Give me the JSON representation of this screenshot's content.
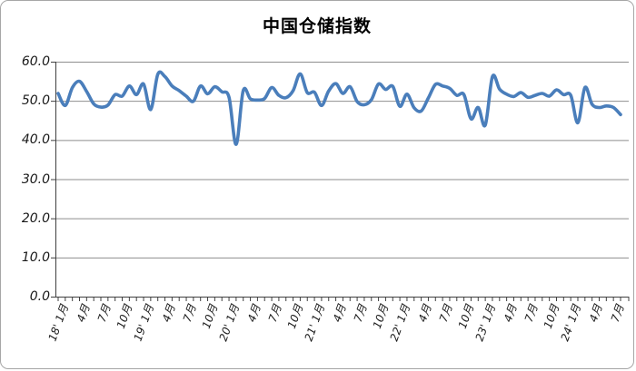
{
  "title": "中国仓储指数",
  "colors": {
    "line": "#4a7ebb",
    "grid": "#8e8e8e",
    "axis": "#3f3f3f",
    "border": "#a6a6a6",
    "background": "#ffffff",
    "text": "#000000"
  },
  "y_axis": {
    "tick_labels": [
      "60.0",
      "50.0",
      "40.0",
      "30.0",
      "20.0",
      "10.0",
      "0.0"
    ],
    "min": 0,
    "max": 60,
    "step": 10
  },
  "x_axis": {
    "tick_labels": [
      "18' 1月",
      "4月",
      "7月",
      "10月",
      "19' 1月",
      "4月",
      "7月",
      "10月",
      "20' 1月",
      "4月",
      "7月",
      "10月",
      "21' 1月",
      "4月",
      "7月",
      "10月",
      "22' 1月",
      "4月",
      "7月",
      "10月",
      "23' 1月",
      "4月",
      "7月",
      "10月",
      "24' 1月",
      "4月",
      "7月"
    ],
    "label_every_n_months": 3
  },
  "chart_data": {
    "type": "line",
    "title": "中国仓储指数",
    "xlabel": "",
    "ylabel": "",
    "ylim": [
      0,
      60
    ],
    "grid": true,
    "legend": false,
    "smooth": true,
    "frequency": "monthly",
    "x": [
      "2018-01",
      "2018-02",
      "2018-03",
      "2018-04",
      "2018-05",
      "2018-06",
      "2018-07",
      "2018-08",
      "2018-09",
      "2018-10",
      "2018-11",
      "2018-12",
      "2019-01",
      "2019-02",
      "2019-03",
      "2019-04",
      "2019-05",
      "2019-06",
      "2019-07",
      "2019-08",
      "2019-09",
      "2019-10",
      "2019-11",
      "2019-12",
      "2020-01",
      "2020-02",
      "2020-03",
      "2020-04",
      "2020-05",
      "2020-06",
      "2020-07",
      "2020-08",
      "2020-09",
      "2020-10",
      "2020-11",
      "2020-12",
      "2021-01",
      "2021-02",
      "2021-03",
      "2021-04",
      "2021-05",
      "2021-06",
      "2021-07",
      "2021-08",
      "2021-09",
      "2021-10",
      "2021-11",
      "2021-12",
      "2022-01",
      "2022-02",
      "2022-03",
      "2022-04",
      "2022-05",
      "2022-06",
      "2022-07",
      "2022-08",
      "2022-09",
      "2022-10",
      "2022-11",
      "2022-12",
      "2023-01",
      "2023-02",
      "2023-03",
      "2023-04",
      "2023-05",
      "2023-06",
      "2023-07",
      "2023-08",
      "2023-09",
      "2023-10",
      "2023-11",
      "2023-12",
      "2024-01",
      "2024-02",
      "2024-03",
      "2024-04",
      "2024-05",
      "2024-06",
      "2024-07",
      "2024-08"
    ],
    "series": [
      {
        "name": "中国仓储指数",
        "values": [
          51.9,
          48.8,
          53.4,
          55.0,
          52.4,
          49.2,
          48.4,
          48.9,
          51.6,
          51.2,
          53.8,
          51.6,
          54.3,
          47.8,
          56.8,
          56.2,
          53.8,
          52.6,
          51.2,
          49.9,
          53.8,
          51.8,
          53.6,
          52.3,
          50.9,
          38.9,
          52.6,
          50.5,
          50.2,
          50.6,
          53.4,
          51.4,
          50.8,
          52.6,
          56.9,
          52.1,
          52.2,
          48.8,
          52.5,
          54.4,
          51.9,
          53.6,
          49.8,
          49.0,
          50.3,
          54.3,
          52.9,
          53.7,
          48.6,
          51.7,
          48.2,
          47.4,
          50.7,
          54.2,
          53.8,
          53.2,
          51.4,
          51.6,
          45.4,
          48.3,
          43.8,
          56.2,
          53.0,
          51.7,
          51.1,
          52.1,
          50.9,
          51.4,
          51.9,
          51.2,
          52.8,
          51.6,
          51.4,
          44.4,
          53.4,
          49.1,
          48.3,
          48.7,
          48.3,
          46.5
        ]
      }
    ]
  }
}
